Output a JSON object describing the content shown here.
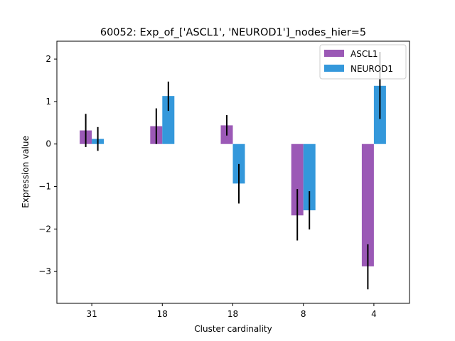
{
  "chart_data": {
    "type": "bar",
    "title": "60052: Exp_of_['ASCL1', 'NEUROD1']_nodes_hier=5",
    "xlabel": "Cluster cardinality",
    "ylabel": "Expression value",
    "categories": [
      "31",
      "18",
      "18",
      "8",
      "4"
    ],
    "ylim": [
      -3.75,
      2.42
    ],
    "yticks": [
      -3,
      -2,
      -1,
      0,
      1,
      2
    ],
    "grid": false,
    "legend_position": "top-right",
    "series": [
      {
        "name": "ASCL1",
        "color": "#9b59b6",
        "values": [
          0.32,
          0.42,
          0.44,
          -1.68,
          -2.88
        ],
        "err_low": [
          -0.07,
          0.0,
          0.2,
          -2.27,
          -3.42
        ],
        "err_high": [
          0.71,
          0.84,
          0.68,
          -1.06,
          -2.36
        ]
      },
      {
        "name": "NEUROD1",
        "color": "#3498db",
        "values": [
          0.12,
          1.13,
          -0.93,
          -1.56,
          1.37
        ],
        "err_low": [
          -0.16,
          0.78,
          -1.4,
          -2.01,
          0.59
        ],
        "err_high": [
          0.4,
          1.47,
          -0.47,
          -1.11,
          2.17
        ]
      }
    ]
  }
}
